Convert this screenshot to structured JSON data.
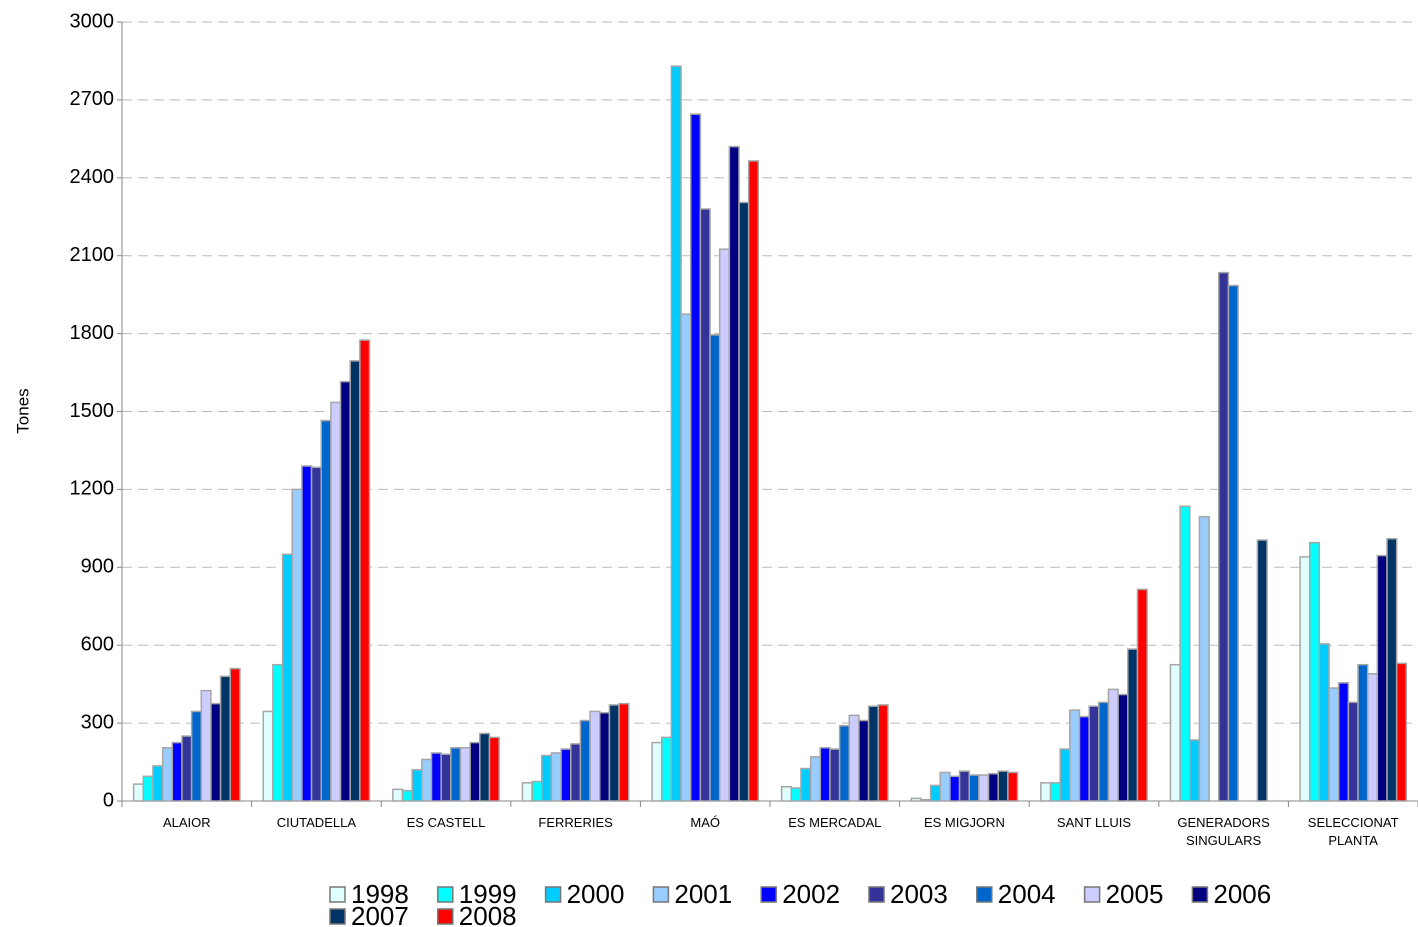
{
  "chart_data": {
    "type": "bar",
    "y_label": "Tones",
    "categories": [
      "ALAIOR",
      "CIUTADELLA",
      "ES CASTELL",
      "FERRERIES",
      "MAÓ",
      "ES MERCADAL",
      "ES MIGJORN",
      "SANT LLUIS",
      "GENERADORS SINGULARS",
      "SELECCIONAT PLANTA"
    ],
    "series": [
      {
        "name": "1998",
        "color": "#e0ffff",
        "values": [
          65,
          345,
          45,
          70,
          225,
          55,
          10,
          70,
          525,
          940
        ]
      },
      {
        "name": "1999",
        "color": "#00ffff",
        "values": [
          95,
          525,
          40,
          75,
          245,
          50,
          5,
          70,
          1135,
          995
        ]
      },
      {
        "name": "2000",
        "color": "#00ccff",
        "values": [
          135,
          950,
          120,
          175,
          2830,
          125,
          60,
          200,
          235,
          605
        ]
      },
      {
        "name": "2001",
        "color": "#99ccff",
        "values": [
          205,
          1200,
          160,
          185,
          1875,
          170,
          110,
          350,
          1095,
          435
        ]
      },
      {
        "name": "2002",
        "color": "#0000ff",
        "values": [
          225,
          1290,
          185,
          200,
          2645,
          205,
          95,
          325,
          null,
          455
        ]
      },
      {
        "name": "2003",
        "color": "#333399",
        "values": [
          250,
          1285,
          180,
          220,
          2280,
          200,
          115,
          365,
          2035,
          380
        ]
      },
      {
        "name": "2004",
        "color": "#0066cc",
        "values": [
          345,
          1465,
          205,
          310,
          1795,
          290,
          100,
          380,
          1985,
          525
        ]
      },
      {
        "name": "2005",
        "color": "#ccccff",
        "values": [
          425,
          1535,
          205,
          345,
          2125,
          330,
          100,
          430,
          null,
          490
        ]
      },
      {
        "name": "2006",
        "color": "#000080",
        "values": [
          375,
          1615,
          225,
          340,
          2520,
          310,
          105,
          410,
          null,
          945
        ]
      },
      {
        "name": "2007",
        "color": "#003366",
        "values": [
          480,
          1695,
          260,
          370,
          2305,
          365,
          115,
          585,
          1005,
          1010
        ]
      },
      {
        "name": "2008",
        "color": "#ff0000",
        "values": [
          510,
          1775,
          245,
          375,
          2465,
          370,
          110,
          815,
          null,
          530
        ]
      }
    ],
    "ylim": [
      0,
      3000
    ],
    "yticks": [
      0,
      300,
      600,
      900,
      1200,
      1500,
      1800,
      2100,
      2400,
      2700,
      3000
    ],
    "grid": true
  }
}
